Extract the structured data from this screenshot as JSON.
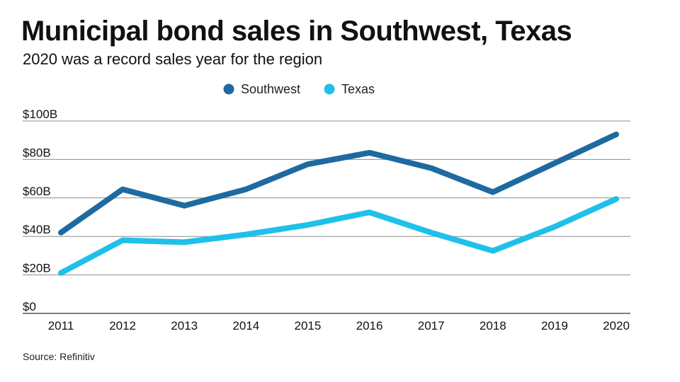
{
  "title": "Municipal bond sales in Southwest, Texas",
  "subtitle": "2020 was a record sales year for the region",
  "source": "Source: Refinitiv",
  "chart_data": {
    "type": "line",
    "x": [
      "2011",
      "2012",
      "2013",
      "2014",
      "2015",
      "2016",
      "2017",
      "2018",
      "2019",
      "2020"
    ],
    "series": [
      {
        "name": "Southwest",
        "color": "#1e6aa0",
        "values": [
          42,
          64.5,
          56,
          64.5,
          77.5,
          83.5,
          75.5,
          63,
          78,
          93
        ]
      },
      {
        "name": "Texas",
        "color": "#1fc0ea",
        "values": [
          21,
          38,
          37,
          41,
          46,
          52.5,
          42,
          32.5,
          45,
          59.5
        ]
      }
    ],
    "y_ticks": [
      "$0",
      "$20B",
      "$40B",
      "$60B",
      "$80B",
      "$100B"
    ],
    "y_tick_values": [
      0,
      20,
      40,
      60,
      80,
      100
    ],
    "ylim": [
      0,
      100
    ],
    "grid": true,
    "legend_position": "top-center"
  }
}
